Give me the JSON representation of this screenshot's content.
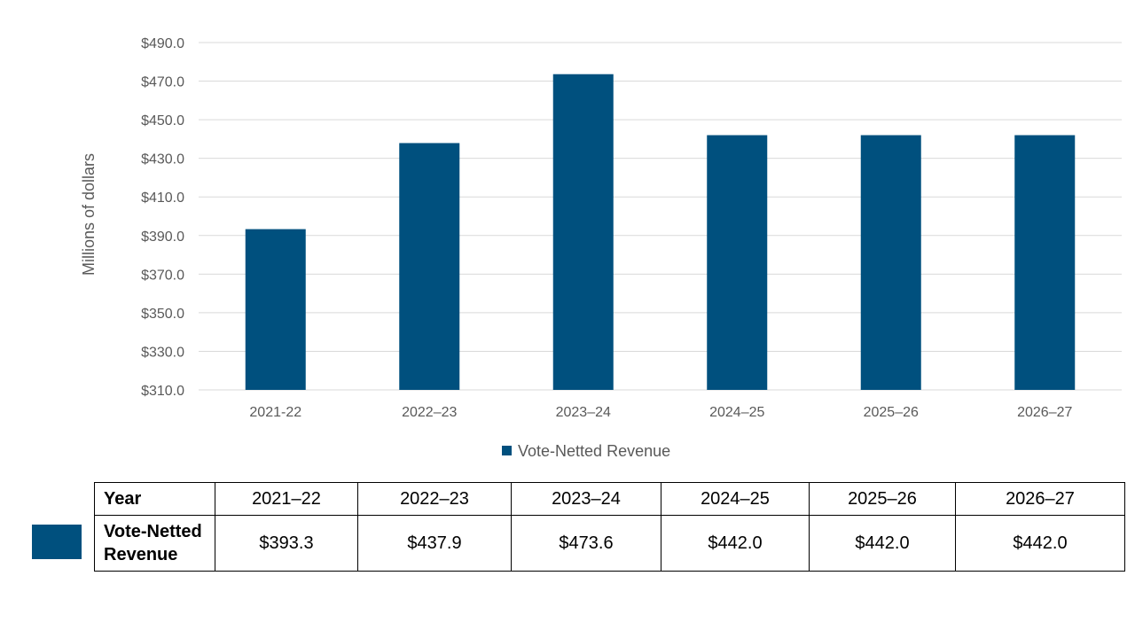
{
  "colors": {
    "bar": "#00507E",
    "grid": "#D9D9D9",
    "text": "#595959"
  },
  "chart_data": {
    "type": "bar",
    "categories": [
      "2021-22",
      "2022–23",
      "2023–24",
      "2024–25",
      "2025–26",
      "2026–27"
    ],
    "series": [
      {
        "name": "Vote-Netted Revenue",
        "values": [
          393.3,
          437.9,
          473.6,
          442.0,
          442.0,
          442.0
        ]
      }
    ],
    "ylabel": "Millions of dollars",
    "ylim": [
      310,
      490
    ],
    "yticks": [
      "$310.0",
      "$330.0",
      "$350.0",
      "$370.0",
      "$390.0",
      "$410.0",
      "$430.0",
      "$450.0",
      "$470.0",
      "$490.0"
    ],
    "grid": true,
    "legend_position": "bottom"
  },
  "table": {
    "header_label": "Year",
    "years": [
      "2021–22",
      "2022–23",
      "2023–24",
      "2024–25",
      "2025–26",
      "2026–27"
    ],
    "row_label": "Vote-Netted Revenue",
    "values": [
      "$393.3",
      "$437.9",
      "$473.6",
      "$442.0",
      "$442.0",
      "$442.0"
    ]
  }
}
